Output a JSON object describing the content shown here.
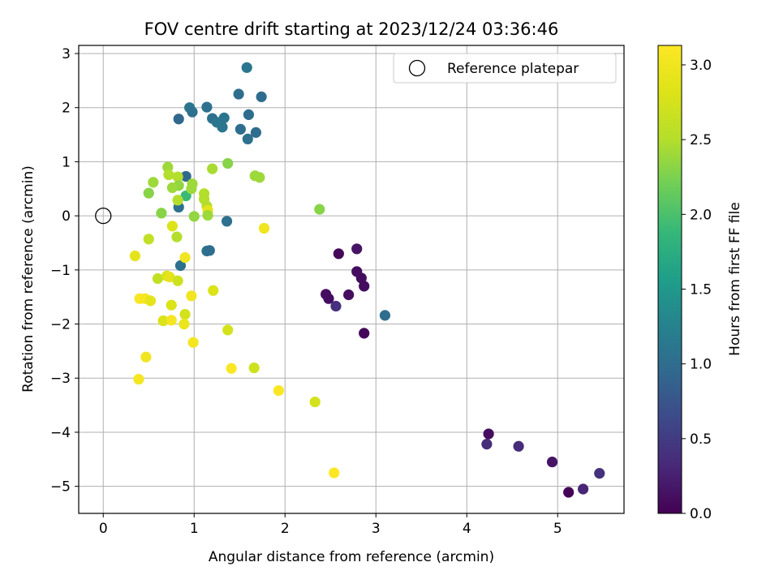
{
  "chart_data": {
    "type": "scatter",
    "title": "FOV centre drift starting at 2023/12/24 03:36:46",
    "xlabel": "Angular distance from reference (arcmin)",
    "ylabel": "Rotation from reference (arcmin)",
    "xlim": [
      -0.27,
      5.73
    ],
    "ylim": [
      -5.5,
      3.15
    ],
    "xticks": [
      0,
      1,
      2,
      3,
      4,
      5
    ],
    "yticks": [
      -5,
      -4,
      -3,
      -2,
      -1,
      0,
      1,
      2,
      3
    ],
    "grid": true,
    "legend": {
      "position": "top-right",
      "entries": [
        "Reference platepar"
      ]
    },
    "reference_point": {
      "x": 0,
      "y": 0,
      "label": "Reference platepar"
    },
    "colorbar": {
      "label": "Hours from first FF file",
      "range": [
        0,
        3.13
      ],
      "ticks": [
        0.0,
        0.5,
        1.0,
        1.5,
        2.0,
        2.5,
        3.0
      ],
      "tick_labels": [
        "0.0",
        "0.5",
        "1.0",
        "1.5",
        "2.0",
        "2.5",
        "3.0"
      ],
      "colormap": "viridis"
    },
    "points": [
      {
        "x": 5.12,
        "y": -5.11,
        "c": 0.02
      },
      {
        "x": 5.28,
        "y": -5.05,
        "c": 0.3
      },
      {
        "x": 5.46,
        "y": -4.76,
        "c": 0.4
      },
      {
        "x": 4.94,
        "y": -4.55,
        "c": 0.15
      },
      {
        "x": 4.57,
        "y": -4.26,
        "c": 0.35
      },
      {
        "x": 4.22,
        "y": -4.22,
        "c": 0.35
      },
      {
        "x": 4.24,
        "y": -4.03,
        "c": 0.1
      },
      {
        "x": 2.87,
        "y": -2.17,
        "c": 0.05
      },
      {
        "x": 2.56,
        "y": -1.67,
        "c": 0.4
      },
      {
        "x": 2.48,
        "y": -1.53,
        "c": 0.1
      },
      {
        "x": 2.45,
        "y": -1.45,
        "c": 0.1
      },
      {
        "x": 2.7,
        "y": -1.46,
        "c": 0.1
      },
      {
        "x": 2.87,
        "y": -1.3,
        "c": 0.1
      },
      {
        "x": 2.84,
        "y": -1.15,
        "c": 0.1
      },
      {
        "x": 2.79,
        "y": -1.03,
        "c": 0.1
      },
      {
        "x": 2.59,
        "y": -0.7,
        "c": 0.05
      },
      {
        "x": 2.79,
        "y": -0.61,
        "c": 0.15
      },
      {
        "x": 3.1,
        "y": -1.84,
        "c": 1.0
      },
      {
        "x": 1.58,
        "y": 2.74,
        "c": 1.1
      },
      {
        "x": 1.49,
        "y": 2.25,
        "c": 1.0
      },
      {
        "x": 1.74,
        "y": 2.2,
        "c": 1.0
      },
      {
        "x": 0.95,
        "y": 2.0,
        "c": 1.1
      },
      {
        "x": 1.14,
        "y": 2.01,
        "c": 1.05
      },
      {
        "x": 0.98,
        "y": 1.92,
        "c": 1.05
      },
      {
        "x": 1.6,
        "y": 1.87,
        "c": 1.0
      },
      {
        "x": 1.2,
        "y": 1.8,
        "c": 1.05
      },
      {
        "x": 1.33,
        "y": 1.81,
        "c": 1.1
      },
      {
        "x": 0.83,
        "y": 1.79,
        "c": 0.95
      },
      {
        "x": 1.25,
        "y": 1.73,
        "c": 1.1
      },
      {
        "x": 1.31,
        "y": 1.64,
        "c": 1.1
      },
      {
        "x": 1.51,
        "y": 1.6,
        "c": 1.0
      },
      {
        "x": 1.68,
        "y": 1.54,
        "c": 1.0
      },
      {
        "x": 1.59,
        "y": 1.42,
        "c": 1.05
      },
      {
        "x": 0.91,
        "y": 0.73,
        "c": 0.95
      },
      {
        "x": 0.83,
        "y": 0.16,
        "c": 1.05
      },
      {
        "x": 1.36,
        "y": -0.1,
        "c": 1.05
      },
      {
        "x": 1.14,
        "y": -0.65,
        "c": 1.05
      },
      {
        "x": 1.17,
        "y": -0.64,
        "c": 1.0
      },
      {
        "x": 0.85,
        "y": -0.92,
        "c": 1.05
      },
      {
        "x": 0.91,
        "y": 0.37,
        "c": 1.9
      },
      {
        "x": 2.38,
        "y": 0.12,
        "c": 2.3
      },
      {
        "x": 1.37,
        "y": 0.97,
        "c": 2.3
      },
      {
        "x": 0.71,
        "y": 0.9,
        "c": 2.4
      },
      {
        "x": 1.2,
        "y": 0.87,
        "c": 2.45
      },
      {
        "x": 0.72,
        "y": 0.76,
        "c": 2.5
      },
      {
        "x": 1.67,
        "y": 0.74,
        "c": 2.4
      },
      {
        "x": 1.72,
        "y": 0.71,
        "c": 2.4
      },
      {
        "x": 0.82,
        "y": 0.72,
        "c": 2.5
      },
      {
        "x": 0.55,
        "y": 0.62,
        "c": 2.4
      },
      {
        "x": 0.98,
        "y": 0.59,
        "c": 2.4
      },
      {
        "x": 0.83,
        "y": 0.56,
        "c": 2.35
      },
      {
        "x": 0.76,
        "y": 0.52,
        "c": 2.4
      },
      {
        "x": 0.97,
        "y": 0.5,
        "c": 2.4
      },
      {
        "x": 0.5,
        "y": 0.42,
        "c": 2.3
      },
      {
        "x": 1.11,
        "y": 0.41,
        "c": 2.5
      },
      {
        "x": 1.11,
        "y": 0.31,
        "c": 2.5
      },
      {
        "x": 0.82,
        "y": 0.29,
        "c": 2.5
      },
      {
        "x": 1.14,
        "y": 0.18,
        "c": 2.5
      },
      {
        "x": 1.15,
        "y": 0.1,
        "c": 2.9
      },
      {
        "x": 0.64,
        "y": 0.05,
        "c": 2.3
      },
      {
        "x": 1.15,
        "y": 0.01,
        "c": 2.4
      },
      {
        "x": 1.0,
        "y": -0.01,
        "c": 2.35
      },
      {
        "x": 0.76,
        "y": -0.19,
        "c": 2.8
      },
      {
        "x": 1.77,
        "y": -0.23,
        "c": 3.0
      },
      {
        "x": 0.81,
        "y": -0.39,
        "c": 2.5
      },
      {
        "x": 0.5,
        "y": -0.43,
        "c": 2.6
      },
      {
        "x": 0.35,
        "y": -0.74,
        "c": 2.9
      },
      {
        "x": 0.9,
        "y": -0.77,
        "c": 3.0
      },
      {
        "x": 0.6,
        "y": -1.16,
        "c": 2.6
      },
      {
        "x": 0.7,
        "y": -1.11,
        "c": 2.8
      },
      {
        "x": 0.73,
        "y": -1.13,
        "c": 2.9
      },
      {
        "x": 0.82,
        "y": -1.2,
        "c": 2.7
      },
      {
        "x": 1.21,
        "y": -1.38,
        "c": 2.8
      },
      {
        "x": 0.97,
        "y": -1.48,
        "c": 3.0
      },
      {
        "x": 0.4,
        "y": -1.53,
        "c": 3.1
      },
      {
        "x": 0.46,
        "y": -1.53,
        "c": 3.05
      },
      {
        "x": 0.52,
        "y": -1.57,
        "c": 2.9
      },
      {
        "x": 0.75,
        "y": -1.65,
        "c": 2.8
      },
      {
        "x": 0.9,
        "y": -1.82,
        "c": 2.75
      },
      {
        "x": 0.66,
        "y": -1.94,
        "c": 2.8
      },
      {
        "x": 0.75,
        "y": -1.93,
        "c": 3.05
      },
      {
        "x": 0.89,
        "y": -2.0,
        "c": 2.95
      },
      {
        "x": 1.37,
        "y": -2.11,
        "c": 2.75
      },
      {
        "x": 0.99,
        "y": -2.34,
        "c": 3.05
      },
      {
        "x": 0.47,
        "y": -2.61,
        "c": 3.0
      },
      {
        "x": 1.41,
        "y": -2.82,
        "c": 3.1
      },
      {
        "x": 1.66,
        "y": -2.81,
        "c": 2.7
      },
      {
        "x": 0.39,
        "y": -3.02,
        "c": 3.05
      },
      {
        "x": 1.93,
        "y": -3.23,
        "c": 3.1
      },
      {
        "x": 2.33,
        "y": -3.44,
        "c": 2.75
      },
      {
        "x": 2.54,
        "y": -4.75,
        "c": 3.13
      }
    ]
  }
}
